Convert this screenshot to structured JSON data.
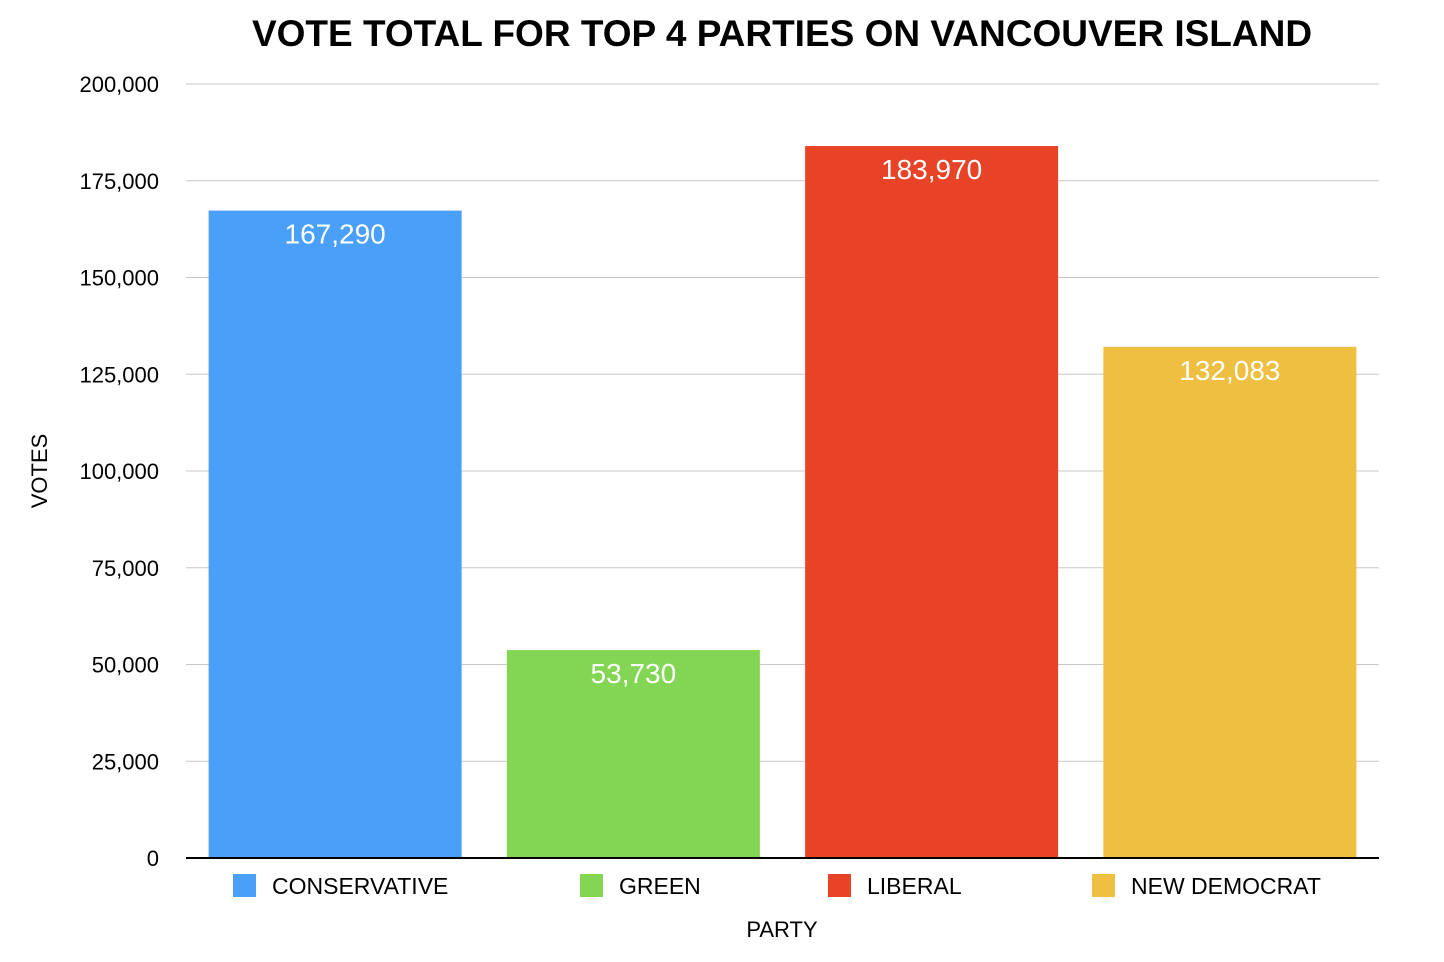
{
  "chart_data": {
    "type": "bar",
    "title": "VOTE TOTAL FOR TOP 4 PARTIES ON VANCOUVER ISLAND",
    "xlabel": "PARTY",
    "ylabel": "VOTES",
    "categories": [
      "CONSERVATIVE",
      "GREEN",
      "LIBERAL",
      "NEW DEMOCRAT"
    ],
    "values": [
      167290,
      53730,
      183970,
      132083
    ],
    "value_labels": [
      "167,290",
      "53,730",
      "183,970",
      "132,083"
    ],
    "colors": [
      "#4a9ff8",
      "#82d653",
      "#e84326",
      "#efbf42"
    ],
    "ylim": [
      0,
      200000
    ],
    "yticks": [
      0,
      25000,
      50000,
      75000,
      100000,
      125000,
      150000,
      175000,
      200000
    ],
    "ytick_labels": [
      "0",
      "25,000",
      "50,000",
      "75,000",
      "100,000",
      "125,000",
      "150,000",
      "175,000",
      "200,000"
    ],
    "grid": true,
    "legend_position": "bottom"
  }
}
